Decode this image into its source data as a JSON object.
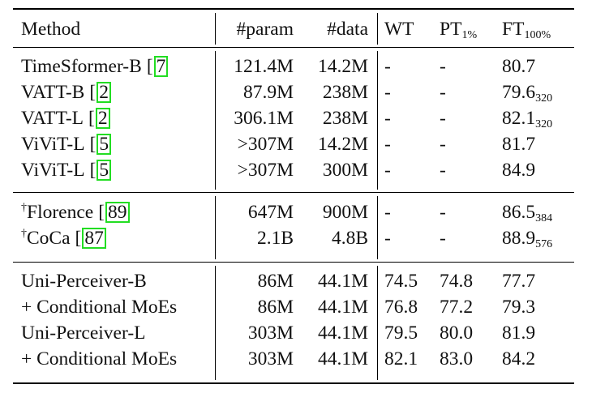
{
  "header": {
    "method": "Method",
    "param": "#param",
    "data": "#data",
    "wt": "WT",
    "pt": "PT",
    "pt_sub": "1%",
    "ft": "FT",
    "ft_sub": "100%"
  },
  "groups": [
    {
      "rows": [
        {
          "dagger": "",
          "name": "TimeSformer-B",
          "ref": "7",
          "param": "121.4M",
          "data": "14.2M",
          "wt": "-",
          "pt": "-",
          "ft": "80.7",
          "ft_sub": ""
        },
        {
          "dagger": "",
          "name": "VATT-B",
          "ref": "2",
          "param": "87.9M",
          "data": "238M",
          "wt": "-",
          "pt": "-",
          "ft": "79.6",
          "ft_sub": "320"
        },
        {
          "dagger": "",
          "name": "VATT-L",
          "ref": "2",
          "param": "306.1M",
          "data": "238M",
          "wt": "-",
          "pt": "-",
          "ft": "82.1",
          "ft_sub": "320"
        },
        {
          "dagger": "",
          "name": "ViViT-L",
          "ref": "5",
          "param": ">307M",
          "data": "14.2M",
          "wt": "-",
          "pt": "-",
          "ft": "81.7",
          "ft_sub": ""
        },
        {
          "dagger": "",
          "name": "ViViT-L",
          "ref": "5",
          "param": ">307M",
          "data": "300M",
          "wt": "-",
          "pt": "-",
          "ft": "84.9",
          "ft_sub": ""
        }
      ]
    },
    {
      "rows": [
        {
          "dagger": "†",
          "name": "Florence",
          "ref": "89",
          "param": "647M",
          "data": "900M",
          "wt": "-",
          "pt": "-",
          "ft": "86.5",
          "ft_sub": "384"
        },
        {
          "dagger": "†",
          "name": "CoCa",
          "ref": "87",
          "param": "2.1B",
          "data": "4.8B",
          "wt": "-",
          "pt": "-",
          "ft": "88.9",
          "ft_sub": "576"
        }
      ]
    },
    {
      "rows": [
        {
          "dagger": "",
          "name": "Uni-Perceiver-B",
          "ref": "",
          "param": "86M",
          "data": "44.1M",
          "wt": "74.5",
          "pt": "74.8",
          "ft": "77.7",
          "ft_sub": ""
        },
        {
          "dagger": "",
          "name": "+ Conditional MoEs",
          "ref": "",
          "param": "86M",
          "data": "44.1M",
          "wt": "76.8",
          "pt": "77.2",
          "ft": "79.3",
          "ft_sub": ""
        },
        {
          "dagger": "",
          "name": "Uni-Perceiver-L",
          "ref": "",
          "param": "303M",
          "data": "44.1M",
          "wt": "79.5",
          "pt": "80.0",
          "ft": "81.9",
          "ft_sub": ""
        },
        {
          "dagger": "",
          "name": "+ Conditional MoEs",
          "ref": "",
          "param": "303M",
          "data": "44.1M",
          "wt": "82.1",
          "pt": "83.0",
          "ft": "84.2",
          "ft_sub": ""
        }
      ]
    }
  ]
}
